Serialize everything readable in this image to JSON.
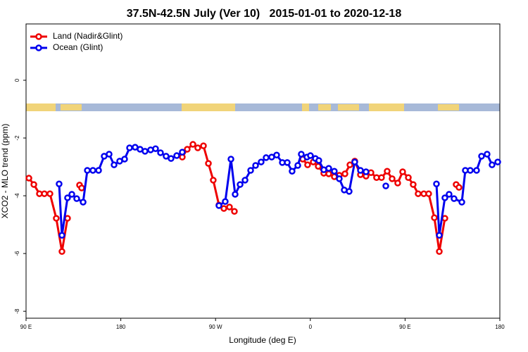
{
  "chart_data": {
    "type": "line",
    "title": "37.5N-42.5N July (Ver 10)   2015-01-01 to 2020-12-18",
    "x_label": "Longitude (deg E)",
    "y_label": "XCO2 - MLO trend (ppm)",
    "xlim": [
      90,
      540
    ],
    "xticks": [
      {
        "value": 90,
        "label": "90 E"
      },
      180,
      {
        "value": 270,
        "label": "90 W"
      },
      {
        "value": 360,
        "label": "0"
      },
      {
        "value": 450,
        "label": "90 E"
      },
      {
        "value": 540,
        "label": "180"
      }
    ],
    "ylim": [
      -8.24,
      1.95
    ],
    "yticks": [
      0,
      -2,
      -4,
      -6,
      -8
    ],
    "legend": "top-left",
    "series": [
      {
        "name": "Land (Nadir&Glint)",
        "color": "#ee0000",
        "x": [
          92.7,
          97.4,
          102.7,
          107.4,
          112.7,
          118.7,
          124.1,
          129.4,
          null,
          140.8,
          142.8,
          null,
          238.4,
          243.1,
          248.5,
          253.1,
          258.5,
          263.2,
          267.8,
          273.2,
          277.9,
          283.2,
          287.9,
          null,
          352.8,
          357.4,
          362.8,
          367.5,
          372.8,
          377.5,
          382.8,
          387.5,
          392.9,
          397.6,
          402.2,
          407.6,
          412.9,
          417.6,
          422.9,
          427.6,
          433.0,
          437.7,
          443.0,
          447.7,
          453.1,
          457.7,
          462.4,
          467.8,
          472.4,
          477.8,
          482.5,
          487.8,
          null,
          498.5,
          501.2
        ],
        "values": [
          -3.39,
          -3.61,
          -3.93,
          -3.93,
          -3.93,
          -4.78,
          -5.93,
          -4.78,
          null,
          -3.63,
          -3.73,
          null,
          -2.66,
          -2.39,
          -2.22,
          -2.34,
          -2.27,
          -2.88,
          -3.46,
          -4.32,
          -4.44,
          -4.39,
          -4.54,
          null,
          -2.73,
          -2.93,
          -2.83,
          -2.98,
          -3.22,
          -3.24,
          -3.34,
          -3.29,
          -3.24,
          -2.93,
          -2.8,
          -3.27,
          -3.32,
          -3.2,
          -3.37,
          -3.37,
          -3.15,
          -3.41,
          -3.56,
          -3.17,
          -3.37,
          -3.61,
          -3.93,
          -3.93,
          -3.93,
          -4.76,
          -5.93,
          -4.78,
          null,
          -3.61,
          -3.71
        ]
      },
      {
        "name": "Ocean (Glint)",
        "color": "#0000ee",
        "x": [
          121.4,
          124.1,
          129.4,
          133.5,
          138.1,
          144.2,
          148.2,
          153.5,
          158.9,
          164.2,
          168.9,
          173.6,
          178.9,
          183.6,
          188.3,
          193.6,
          198.3,
          203.0,
          208.3,
          213.0,
          217.7,
          223.0,
          227.7,
          233.1,
          238.4,
          null,
          273.2,
          279.2,
          284.6,
          288.6,
          293.3,
          298.0,
          303.3,
          308.0,
          313.3,
          318.0,
          323.3,
          328.0,
          333.4,
          338.1,
          342.7,
          348.1,
          351.4,
          356.8,
          360.1,
          364.8,
          368.1,
          372.8,
          377.5,
          382.8,
          387.5,
          392.2,
          396.9,
          402.2,
          407.6,
          412.9,
          null,
          431.7,
          null,
          479.8,
          482.5,
          487.8,
          491.8,
          496.5,
          503.9,
          507.2,
          511.9,
          517.9,
          522.6,
          527.9,
          532.6,
          538.0
        ],
        "values": [
          -3.59,
          -5.37,
          -4.07,
          -3.95,
          -4.1,
          -4.22,
          -3.12,
          -3.12,
          -3.12,
          -2.63,
          -2.56,
          -2.93,
          -2.8,
          -2.73,
          -2.34,
          -2.32,
          -2.39,
          -2.46,
          -2.41,
          -2.37,
          -2.51,
          -2.63,
          -2.71,
          -2.61,
          -2.49,
          null,
          -4.34,
          -4.2,
          -2.73,
          -3.95,
          -3.61,
          -3.46,
          -3.12,
          -2.95,
          -2.83,
          -2.68,
          -2.66,
          -2.59,
          -2.85,
          -2.85,
          -3.15,
          -2.95,
          -2.56,
          -2.66,
          -2.61,
          -2.71,
          -2.78,
          -3.1,
          -3.05,
          -3.15,
          -3.41,
          -3.8,
          -3.85,
          -2.83,
          -3.12,
          -3.17,
          null,
          -3.66,
          null,
          -3.59,
          -5.37,
          -4.07,
          -3.95,
          -4.1,
          -4.22,
          -3.12,
          -3.12,
          -3.12,
          -2.63,
          -2.56,
          -2.93,
          -2.83
        ]
      }
    ]
  }
}
